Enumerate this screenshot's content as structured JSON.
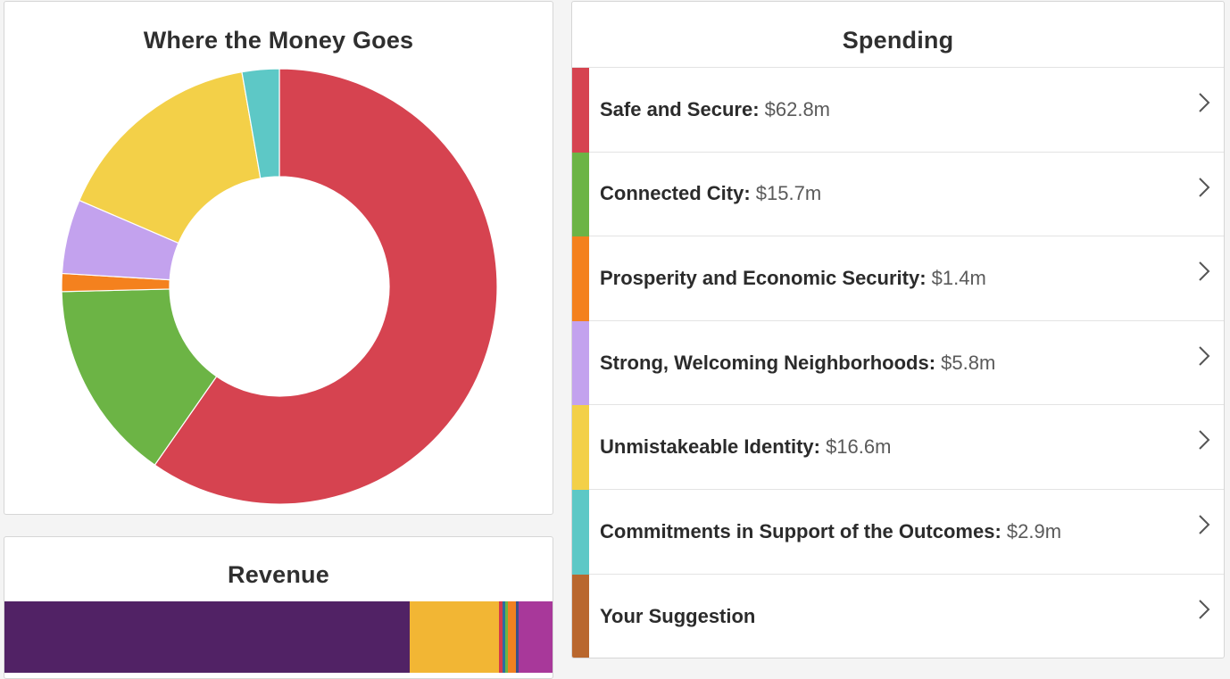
{
  "donut": {
    "title": "Where the Money Goes"
  },
  "revenue": {
    "title": "Revenue",
    "segments": [
      {
        "color": "#512265",
        "share": 0.7394
      },
      {
        "color": "#f2b634",
        "share": 0.1629
      },
      {
        "color": "#d63c4a",
        "share": 0.0065
      },
      {
        "color": "#2b6f9e",
        "share": 0.0049
      },
      {
        "color": "#6ab545",
        "share": 0.0049
      },
      {
        "color": "#f18121",
        "share": 0.0147
      },
      {
        "color": "#3c4f8a",
        "share": 0.0049
      },
      {
        "color": "#a8389a",
        "share": 0.0618
      }
    ]
  },
  "spending": {
    "title": "Spending",
    "items": [
      {
        "label": "Safe and Secure:",
        "amount": " $62.8m",
        "value": 62.8,
        "color": "#d64350"
      },
      {
        "label": "Connected City:",
        "amount": " $15.7m",
        "value": 15.7,
        "color": "#6cb445"
      },
      {
        "label": "Prosperity and Economic Security:",
        "amount": " $1.4m",
        "value": 1.4,
        "color": "#f4811e"
      },
      {
        "label": "Strong, Welcoming Neighborhoods:",
        "amount": " $5.8m",
        "value": 5.8,
        "color": "#c3a2ee"
      },
      {
        "label": "Unmistakeable Identity:",
        "amount": " $16.6m",
        "value": 16.6,
        "color": "#f3d048"
      },
      {
        "label": "Commitments in Support of the Outcomes:",
        "amount": " $2.9m",
        "value": 2.9,
        "color": "#5dc8c6"
      },
      {
        "label": "Your Suggestion",
        "amount": "",
        "value": 0,
        "color": "#b9672e"
      }
    ]
  },
  "icons": {
    "row_chevron": "chevron-right-icon"
  }
}
